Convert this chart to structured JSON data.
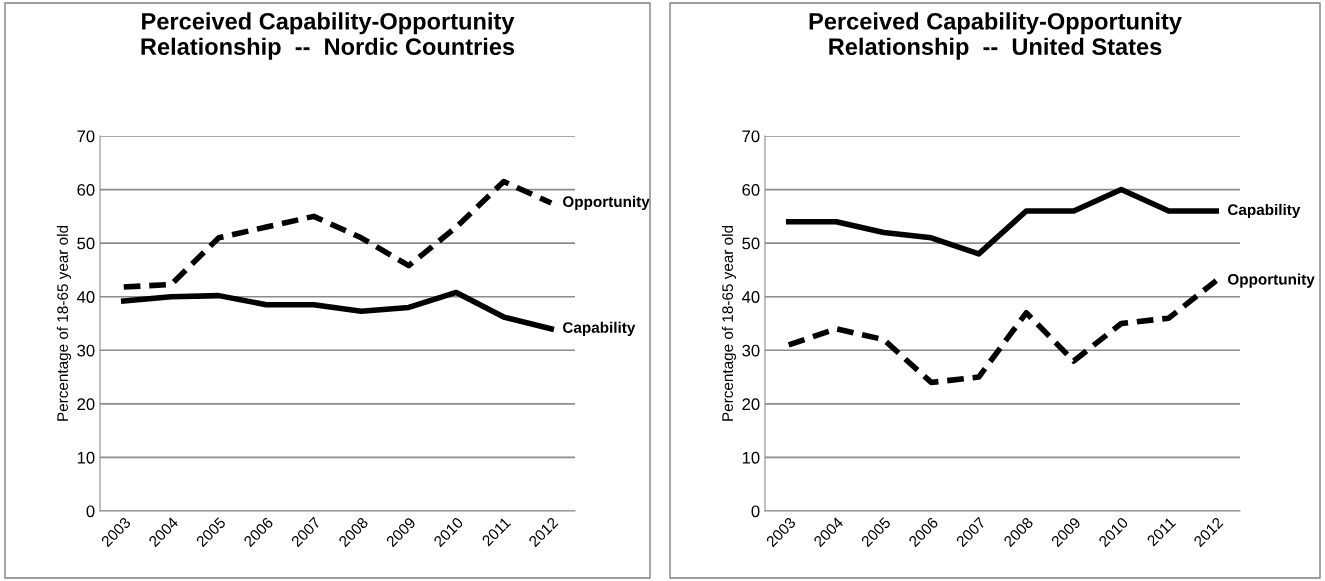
{
  "chart_data": [
    {
      "type": "line",
      "title": "Perceived Capability-Opportunity\nRelationship  --  Nordic Countries",
      "ylabel": "Percentage of 18-65 year old",
      "categories": [
        "2003",
        "2004",
        "2005",
        "2006",
        "2007",
        "2008",
        "2009",
        "2010",
        "2011",
        "2012"
      ],
      "series": [
        {
          "name": "Opportunity",
          "color": "#000000",
          "line_style": "dashed",
          "values": [
            41.8,
            42.3,
            51,
            53,
            55,
            51,
            45.8,
            53,
            61.5,
            57.5
          ]
        },
        {
          "name": "Capability",
          "color": "#000000",
          "line_style": "solid",
          "values": [
            39.2,
            40,
            40.2,
            38.5,
            38.5,
            37.3,
            38,
            40.8,
            36.2,
            34
          ]
        }
      ],
      "ylim": [
        0,
        70
      ],
      "yticks": [
        0,
        10,
        20,
        30,
        40,
        50,
        60,
        70
      ],
      "grid": "y",
      "legend": false,
      "marker": "none"
    },
    {
      "type": "line",
      "title": "Perceived Capability-Opportunity\nRelationship  --  United States",
      "ylabel": "Percentage of 18-65 year old",
      "categories": [
        "2003",
        "2004",
        "2005",
        "2006",
        "2007",
        "2008",
        "2009",
        "2010",
        "2011",
        "2012"
      ],
      "series": [
        {
          "name": "Capability",
          "color": "#000000",
          "line_style": "solid",
          "values": [
            54,
            54,
            52,
            51,
            48,
            56,
            56,
            60,
            56,
            56
          ]
        },
        {
          "name": "Opportunity",
          "color": "#000000",
          "line_style": "dashed",
          "values": [
            31,
            34,
            32,
            24,
            25,
            37,
            28,
            35,
            36,
            43
          ]
        }
      ],
      "ylim": [
        0,
        70
      ],
      "yticks": [
        0,
        10,
        20,
        30,
        40,
        50,
        60,
        70
      ],
      "grid": "y",
      "legend": false,
      "marker": "none"
    }
  ]
}
